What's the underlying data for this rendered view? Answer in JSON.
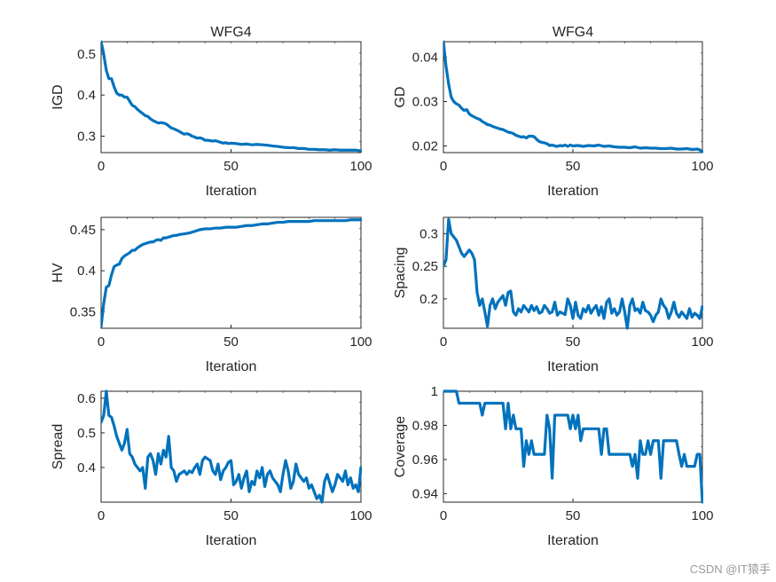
{
  "watermark": "CSDN @IT猿手",
  "colors": {
    "series": "#0072BD",
    "axis": "#262626"
  },
  "chart_data": [
    {
      "type": "line",
      "id": "igd",
      "title": "WFG4",
      "xlabel": "Iteration",
      "ylabel": "IGD",
      "xlim": [
        0,
        100
      ],
      "ylim": [
        0.26,
        0.53
      ],
      "xticks": [
        0,
        50,
        100
      ],
      "xtick_labels": [
        "0",
        "50",
        "100"
      ],
      "yticks": [
        0.3,
        0.4,
        0.5
      ],
      "ytick_labels": [
        "0.3",
        "0.4",
        "0.5"
      ],
      "x": [
        0,
        1,
        2,
        3,
        4,
        5,
        6,
        7,
        8,
        9,
        10,
        11,
        12,
        13,
        14,
        15,
        16,
        17,
        18,
        19,
        20,
        21,
        22,
        23,
        24,
        25,
        26,
        27,
        28,
        29,
        30,
        31,
        32,
        33,
        34,
        35,
        36,
        37,
        38,
        39,
        40,
        41,
        42,
        43,
        44,
        45,
        46,
        47,
        48,
        49,
        50,
        52,
        54,
        56,
        58,
        60,
        62,
        64,
        66,
        68,
        70,
        72,
        74,
        76,
        78,
        80,
        82,
        84,
        86,
        88,
        90,
        92,
        94,
        96,
        98,
        100
      ],
      "y": [
        0.53,
        0.5,
        0.46,
        0.44,
        0.44,
        0.42,
        0.405,
        0.4,
        0.4,
        0.395,
        0.395,
        0.385,
        0.375,
        0.372,
        0.365,
        0.36,
        0.355,
        0.35,
        0.348,
        0.342,
        0.338,
        0.335,
        0.332,
        0.333,
        0.332,
        0.33,
        0.325,
        0.32,
        0.318,
        0.315,
        0.312,
        0.308,
        0.305,
        0.306,
        0.304,
        0.3,
        0.298,
        0.295,
        0.296,
        0.294,
        0.29,
        0.29,
        0.289,
        0.288,
        0.289,
        0.287,
        0.285,
        0.283,
        0.284,
        0.282,
        0.283,
        0.282,
        0.28,
        0.281,
        0.279,
        0.28,
        0.279,
        0.278,
        0.276,
        0.275,
        0.273,
        0.272,
        0.272,
        0.27,
        0.27,
        0.268,
        0.268,
        0.267,
        0.267,
        0.266,
        0.267,
        0.266,
        0.266,
        0.266,
        0.266,
        0.264
      ]
    },
    {
      "type": "line",
      "id": "gd",
      "title": "WFG4",
      "xlabel": "Iteration",
      "ylabel": "GD",
      "xlim": [
        0,
        100
      ],
      "ylim": [
        0.0185,
        0.0435
      ],
      "xticks": [
        0,
        50,
        100
      ],
      "xtick_labels": [
        "0",
        "50",
        "100"
      ],
      "yticks": [
        0.02,
        0.03,
        0.04
      ],
      "ytick_labels": [
        "0.02",
        "0.03",
        "0.04"
      ],
      "x": [
        0,
        1,
        2,
        3,
        4,
        5,
        6,
        7,
        8,
        9,
        10,
        11,
        12,
        13,
        14,
        15,
        16,
        17,
        18,
        19,
        20,
        21,
        22,
        23,
        24,
        25,
        26,
        27,
        28,
        29,
        30,
        31,
        32,
        33,
        34,
        35,
        36,
        37,
        38,
        39,
        40,
        41,
        42,
        43,
        44,
        45,
        46,
        47,
        48,
        49,
        50,
        52,
        54,
        56,
        58,
        60,
        62,
        64,
        66,
        68,
        70,
        72,
        74,
        76,
        78,
        80,
        82,
        84,
        86,
        88,
        90,
        92,
        94,
        96,
        98,
        99,
        100
      ],
      "y": [
        0.0435,
        0.038,
        0.034,
        0.031,
        0.03,
        0.0295,
        0.0292,
        0.0285,
        0.028,
        0.0282,
        0.0272,
        0.0268,
        0.0265,
        0.0262,
        0.026,
        0.0255,
        0.0252,
        0.0248,
        0.0247,
        0.0244,
        0.0242,
        0.024,
        0.0238,
        0.0237,
        0.0234,
        0.0231,
        0.023,
        0.0228,
        0.0224,
        0.0222,
        0.022,
        0.0221,
        0.0218,
        0.0222,
        0.0222,
        0.0221,
        0.0215,
        0.021,
        0.0208,
        0.0207,
        0.0205,
        0.0201,
        0.0202,
        0.02,
        0.0199,
        0.0201,
        0.02,
        0.0202,
        0.0199,
        0.0202,
        0.02,
        0.0201,
        0.0199,
        0.0201,
        0.02,
        0.0202,
        0.0199,
        0.02,
        0.0198,
        0.0197,
        0.0197,
        0.0196,
        0.0198,
        0.0195,
        0.0196,
        0.0195,
        0.0195,
        0.0194,
        0.0194,
        0.0195,
        0.0193,
        0.0193,
        0.0194,
        0.0192,
        0.0193,
        0.0191,
        0.0187
      ]
    },
    {
      "type": "line",
      "id": "hv",
      "title": "",
      "xlabel": "Iteration",
      "ylabel": "HV",
      "xlim": [
        0,
        100
      ],
      "ylim": [
        0.33,
        0.465
      ],
      "xticks": [
        0,
        50,
        100
      ],
      "xtick_labels": [
        "0",
        "50",
        "100"
      ],
      "yticks": [
        0.35,
        0.4,
        0.45
      ],
      "ytick_labels": [
        "0.35",
        "0.4",
        "0.45"
      ],
      "x": [
        0,
        1,
        2,
        3,
        4,
        5,
        6,
        7,
        8,
        9,
        10,
        11,
        12,
        13,
        14,
        15,
        16,
        17,
        18,
        19,
        20,
        21,
        22,
        23,
        24,
        25,
        26,
        27,
        28,
        29,
        30,
        32,
        34,
        36,
        38,
        40,
        42,
        44,
        46,
        48,
        50,
        52,
        54,
        56,
        58,
        60,
        62,
        64,
        66,
        68,
        70,
        72,
        74,
        76,
        78,
        80,
        82,
        84,
        86,
        88,
        90,
        92,
        94,
        96,
        98,
        100
      ],
      "y": [
        0.332,
        0.36,
        0.38,
        0.382,
        0.395,
        0.405,
        0.407,
        0.408,
        0.415,
        0.418,
        0.42,
        0.422,
        0.425,
        0.425,
        0.428,
        0.43,
        0.432,
        0.433,
        0.434,
        0.435,
        0.435,
        0.437,
        0.438,
        0.437,
        0.44,
        0.44,
        0.441,
        0.442,
        0.443,
        0.443,
        0.444,
        0.445,
        0.446,
        0.448,
        0.45,
        0.451,
        0.451,
        0.452,
        0.452,
        0.453,
        0.453,
        0.453,
        0.454,
        0.455,
        0.455,
        0.456,
        0.457,
        0.457,
        0.458,
        0.459,
        0.459,
        0.46,
        0.46,
        0.46,
        0.46,
        0.46,
        0.461,
        0.461,
        0.461,
        0.461,
        0.461,
        0.461,
        0.461,
        0.462,
        0.462,
        0.462
      ]
    },
    {
      "type": "line",
      "id": "spacing",
      "title": "",
      "xlabel": "Iteration",
      "ylabel": "Spacing",
      "xlim": [
        0,
        100
      ],
      "ylim": [
        0.155,
        0.325
      ],
      "xticks": [
        0,
        50,
        100
      ],
      "xtick_labels": [
        "0",
        "50",
        "100"
      ],
      "yticks": [
        0.2,
        0.25,
        0.3
      ],
      "ytick_labels": [
        "0.2",
        "0.25",
        "0.3"
      ],
      "x": [
        0,
        1,
        2,
        3,
        4,
        5,
        6,
        7,
        8,
        9,
        10,
        11,
        12,
        13,
        14,
        15,
        16,
        17,
        18,
        19,
        20,
        21,
        22,
        23,
        24,
        25,
        26,
        27,
        28,
        29,
        30,
        31,
        32,
        33,
        34,
        35,
        36,
        37,
        38,
        39,
        40,
        41,
        42,
        43,
        44,
        45,
        46,
        47,
        48,
        49,
        50,
        51,
        52,
        53,
        54,
        55,
        56,
        57,
        58,
        59,
        60,
        61,
        62,
        63,
        64,
        65,
        66,
        67,
        68,
        69,
        70,
        71,
        72,
        73,
        74,
        75,
        76,
        77,
        78,
        79,
        80,
        81,
        82,
        83,
        84,
        85,
        86,
        87,
        88,
        89,
        90,
        91,
        92,
        93,
        94,
        95,
        96,
        97,
        98,
        99,
        100
      ],
      "y": [
        0.25,
        0.26,
        0.322,
        0.3,
        0.295,
        0.29,
        0.28,
        0.27,
        0.265,
        0.27,
        0.275,
        0.27,
        0.26,
        0.21,
        0.19,
        0.2,
        0.18,
        0.158,
        0.19,
        0.2,
        0.185,
        0.195,
        0.2,
        0.205,
        0.19,
        0.21,
        0.212,
        0.18,
        0.175,
        0.185,
        0.18,
        0.19,
        0.185,
        0.18,
        0.19,
        0.182,
        0.188,
        0.178,
        0.18,
        0.19,
        0.185,
        0.178,
        0.18,
        0.195,
        0.175,
        0.18,
        0.178,
        0.176,
        0.2,
        0.19,
        0.17,
        0.195,
        0.175,
        0.17,
        0.185,
        0.18,
        0.19,
        0.178,
        0.185,
        0.19,
        0.175,
        0.188,
        0.17,
        0.195,
        0.2,
        0.178,
        0.185,
        0.175,
        0.18,
        0.2,
        0.18,
        0.155,
        0.19,
        0.2,
        0.182,
        0.185,
        0.178,
        0.195,
        0.182,
        0.18,
        0.175,
        0.165,
        0.175,
        0.18,
        0.2,
        0.19,
        0.185,
        0.17,
        0.18,
        0.195,
        0.178,
        0.172,
        0.18,
        0.175,
        0.17,
        0.185,
        0.172,
        0.178,
        0.175,
        0.17,
        0.188
      ]
    },
    {
      "type": "line",
      "id": "spread",
      "title": "",
      "xlabel": "Iteration",
      "ylabel": "Spread",
      "xlim": [
        0,
        100
      ],
      "ylim": [
        0.3,
        0.62
      ],
      "xticks": [
        0,
        50,
        100
      ],
      "xtick_labels": [
        "0",
        "50",
        "100"
      ],
      "yticks": [
        0.4,
        0.5,
        0.6
      ],
      "ytick_labels": [
        "0.4",
        "0.5",
        "0.6"
      ],
      "x": [
        0,
        1,
        2,
        3,
        4,
        5,
        6,
        7,
        8,
        9,
        10,
        11,
        12,
        13,
        14,
        15,
        16,
        17,
        18,
        19,
        20,
        21,
        22,
        23,
        24,
        25,
        26,
        27,
        28,
        29,
        30,
        31,
        32,
        33,
        34,
        35,
        36,
        37,
        38,
        39,
        40,
        41,
        42,
        43,
        44,
        45,
        46,
        47,
        48,
        49,
        50,
        51,
        52,
        53,
        54,
        55,
        56,
        57,
        58,
        59,
        60,
        61,
        62,
        63,
        64,
        65,
        66,
        67,
        68,
        69,
        70,
        71,
        72,
        73,
        74,
        75,
        76,
        77,
        78,
        79,
        80,
        81,
        82,
        83,
        84,
        85,
        86,
        87,
        88,
        89,
        90,
        91,
        92,
        93,
        94,
        95,
        96,
        97,
        98,
        99,
        100
      ],
      "y": [
        0.53,
        0.55,
        0.62,
        0.55,
        0.545,
        0.52,
        0.49,
        0.47,
        0.45,
        0.47,
        0.51,
        0.44,
        0.43,
        0.41,
        0.4,
        0.39,
        0.4,
        0.34,
        0.43,
        0.44,
        0.42,
        0.38,
        0.44,
        0.41,
        0.45,
        0.43,
        0.49,
        0.4,
        0.39,
        0.36,
        0.38,
        0.385,
        0.39,
        0.38,
        0.39,
        0.385,
        0.4,
        0.41,
        0.38,
        0.42,
        0.43,
        0.425,
        0.42,
        0.39,
        0.38,
        0.41,
        0.365,
        0.39,
        0.4,
        0.415,
        0.42,
        0.35,
        0.36,
        0.38,
        0.34,
        0.37,
        0.39,
        0.33,
        0.36,
        0.35,
        0.39,
        0.37,
        0.4,
        0.345,
        0.38,
        0.39,
        0.37,
        0.36,
        0.35,
        0.33,
        0.38,
        0.42,
        0.39,
        0.34,
        0.36,
        0.41,
        0.38,
        0.37,
        0.36,
        0.37,
        0.34,
        0.35,
        0.33,
        0.31,
        0.32,
        0.3,
        0.36,
        0.38,
        0.355,
        0.33,
        0.35,
        0.38,
        0.37,
        0.36,
        0.39,
        0.35,
        0.37,
        0.34,
        0.35,
        0.33,
        0.4
      ]
    },
    {
      "type": "line",
      "id": "coverage",
      "title": "",
      "xlabel": "Iteration",
      "ylabel": "Coverage",
      "xlim": [
        0,
        100
      ],
      "ylim": [
        0.935,
        1.0
      ],
      "xticks": [
        0,
        50,
        100
      ],
      "xtick_labels": [
        "0",
        "50",
        "100"
      ],
      "yticks": [
        0.94,
        0.96,
        0.98,
        1
      ],
      "ytick_labels": [
        "0.94",
        "0.96",
        "0.98",
        "1"
      ],
      "x": [
        0,
        1,
        2,
        3,
        4,
        5,
        6,
        7,
        8,
        9,
        10,
        11,
        12,
        13,
        14,
        15,
        16,
        17,
        18,
        19,
        20,
        21,
        22,
        23,
        24,
        25,
        26,
        27,
        28,
        29,
        30,
        31,
        32,
        33,
        34,
        35,
        36,
        37,
        38,
        39,
        40,
        41,
        42,
        43,
        44,
        45,
        46,
        47,
        48,
        49,
        50,
        51,
        52,
        53,
        54,
        55,
        56,
        57,
        58,
        59,
        60,
        61,
        62,
        63,
        64,
        65,
        66,
        67,
        68,
        69,
        70,
        71,
        72,
        73,
        74,
        75,
        76,
        77,
        78,
        79,
        80,
        81,
        82,
        83,
        84,
        85,
        86,
        87,
        88,
        89,
        90,
        91,
        92,
        93,
        94,
        95,
        96,
        97,
        98,
        99,
        100
      ],
      "y": [
        1,
        1,
        1,
        1,
        1,
        1,
        0.993,
        0.993,
        0.993,
        0.993,
        0.993,
        0.993,
        0.993,
        0.993,
        0.993,
        0.986,
        0.993,
        0.993,
        0.993,
        0.993,
        0.993,
        0.993,
        0.993,
        0.993,
        0.978,
        0.993,
        0.978,
        0.986,
        0.978,
        0.978,
        0.978,
        0.956,
        0.971,
        0.963,
        0.971,
        0.963,
        0.963,
        0.963,
        0.963,
        0.963,
        0.986,
        0.978,
        0.949,
        0.986,
        0.986,
        0.986,
        0.986,
        0.986,
        0.986,
        0.978,
        0.986,
        0.978,
        0.986,
        0.971,
        0.978,
        0.978,
        0.978,
        0.978,
        0.978,
        0.978,
        0.978,
        0.963,
        0.978,
        0.978,
        0.963,
        0.963,
        0.963,
        0.963,
        0.963,
        0.963,
        0.963,
        0.963,
        0.963,
        0.956,
        0.963,
        0.949,
        0.971,
        0.963,
        0.963,
        0.971,
        0.963,
        0.971,
        0.971,
        0.971,
        0.949,
        0.971,
        0.971,
        0.971,
        0.971,
        0.971,
        0.971,
        0.963,
        0.956,
        0.963,
        0.956,
        0.956,
        0.956,
        0.956,
        0.963,
        0.963,
        0.935
      ]
    }
  ]
}
